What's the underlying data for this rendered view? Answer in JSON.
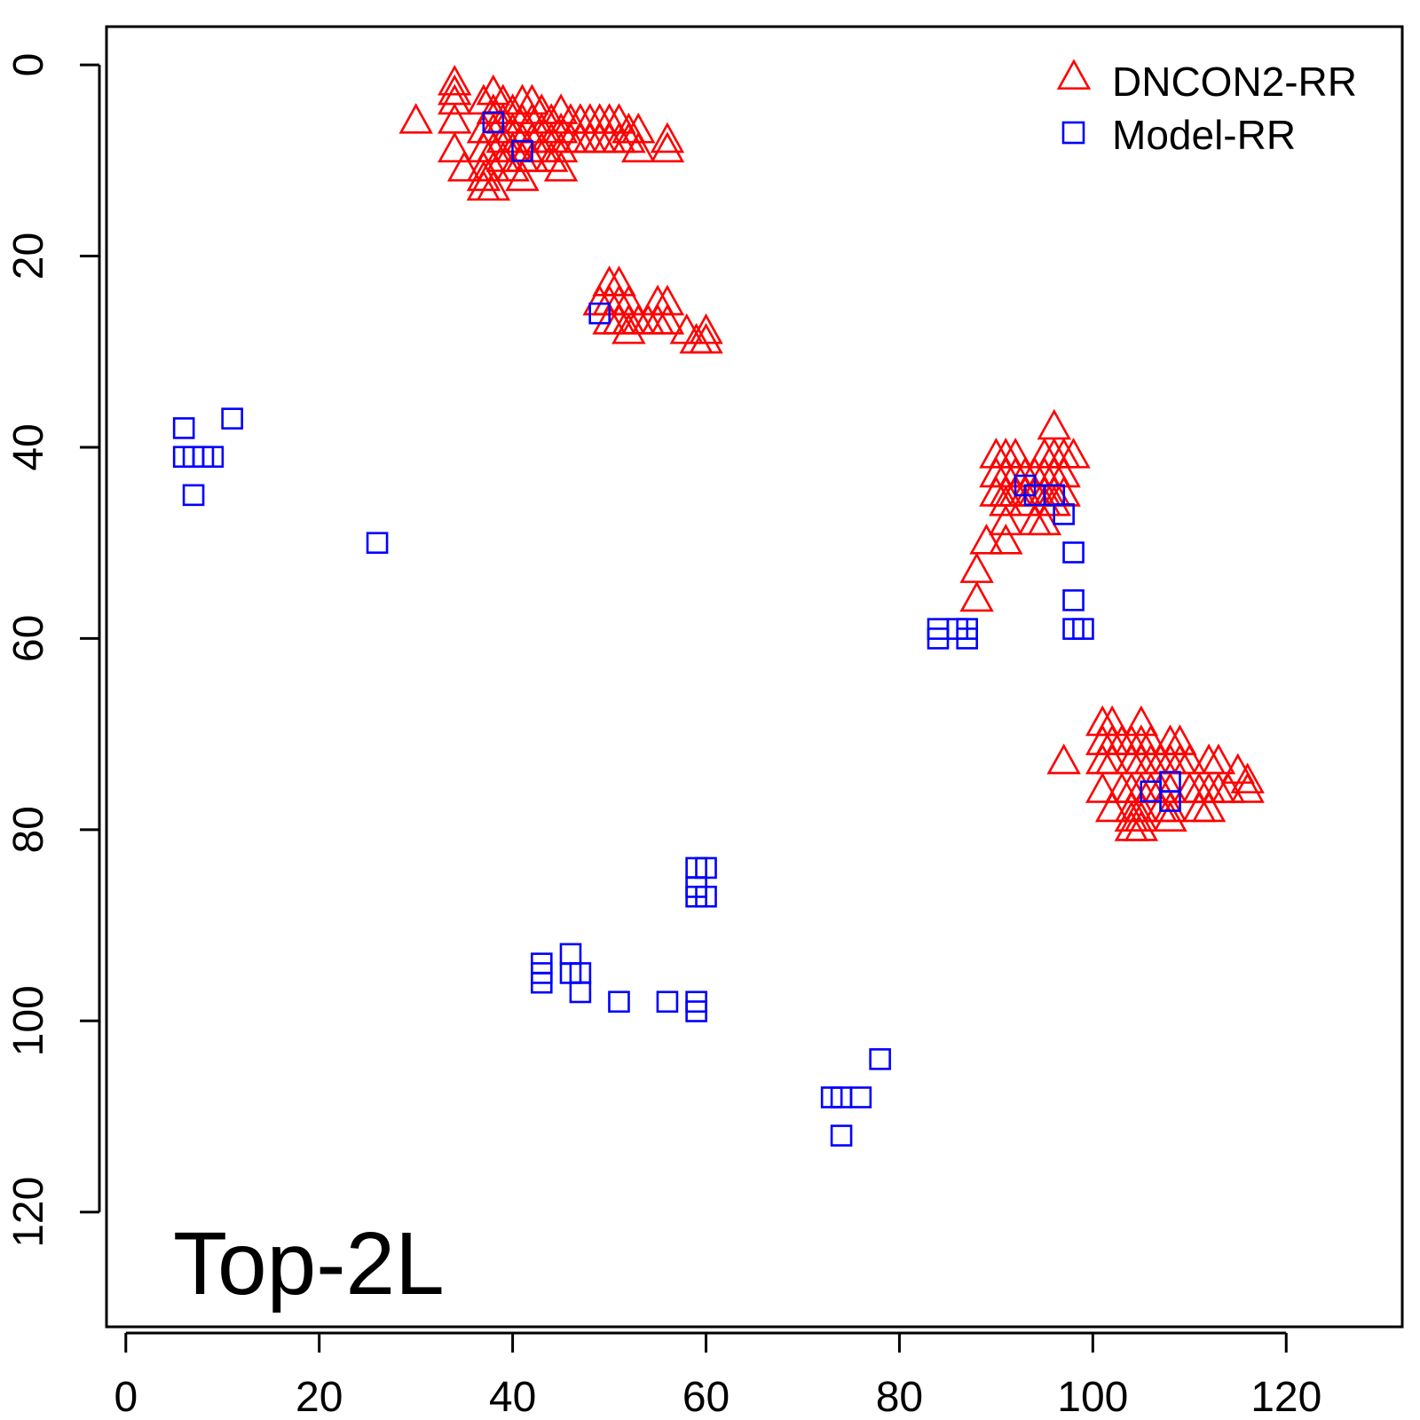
{
  "chart_data": {
    "type": "scatter",
    "title": "",
    "xlabel": "",
    "ylabel": "",
    "xlim": [
      -2,
      132
    ],
    "ylim": [
      -4,
      132
    ],
    "y_reversed": true,
    "grid": false,
    "legend_position": "top-right",
    "x_ticks": [
      0,
      20,
      40,
      60,
      80,
      100,
      120
    ],
    "y_ticks": [
      0,
      20,
      40,
      60,
      80,
      100,
      120
    ],
    "annotation": "Top-2L",
    "series": [
      {
        "name": "DNCON2-RR",
        "marker": "triangle",
        "color": "#ff0000",
        "points": [
          [
            30,
            6
          ],
          [
            34,
            2
          ],
          [
            34,
            3
          ],
          [
            34,
            4
          ],
          [
            34,
            6
          ],
          [
            34,
            9
          ],
          [
            35,
            11
          ],
          [
            37,
            4
          ],
          [
            37,
            7
          ],
          [
            37,
            9
          ],
          [
            37,
            11
          ],
          [
            37,
            12
          ],
          [
            37,
            13
          ],
          [
            38,
            3
          ],
          [
            38,
            5
          ],
          [
            38,
            7
          ],
          [
            38,
            9
          ],
          [
            38,
            11
          ],
          [
            38,
            13
          ],
          [
            39,
            4
          ],
          [
            39,
            6
          ],
          [
            39,
            8
          ],
          [
            39,
            10
          ],
          [
            40,
            5
          ],
          [
            40,
            7
          ],
          [
            40,
            9
          ],
          [
            40,
            11
          ],
          [
            41,
            4
          ],
          [
            41,
            6
          ],
          [
            41,
            8
          ],
          [
            41,
            10
          ],
          [
            41,
            12
          ],
          [
            42,
            4
          ],
          [
            42,
            6
          ],
          [
            42,
            8
          ],
          [
            42,
            10
          ],
          [
            43,
            5
          ],
          [
            43,
            7
          ],
          [
            43,
            9
          ],
          [
            44,
            6
          ],
          [
            44,
            8
          ],
          [
            44,
            10
          ],
          [
            45,
            5
          ],
          [
            45,
            7
          ],
          [
            45,
            9
          ],
          [
            45,
            11
          ],
          [
            46,
            6
          ],
          [
            46,
            8
          ],
          [
            47,
            6
          ],
          [
            47,
            8
          ],
          [
            48,
            6
          ],
          [
            48,
            8
          ],
          [
            49,
            6
          ],
          [
            49,
            8
          ],
          [
            50,
            6
          ],
          [
            50,
            8
          ],
          [
            51,
            6
          ],
          [
            51,
            8
          ],
          [
            52,
            7
          ],
          [
            52,
            8
          ],
          [
            53,
            7
          ],
          [
            53,
            9
          ],
          [
            56,
            8
          ],
          [
            56,
            9
          ],
          [
            49,
            25
          ],
          [
            50,
            23
          ],
          [
            50,
            25
          ],
          [
            50,
            27
          ],
          [
            51,
            23
          ],
          [
            51,
            25
          ],
          [
            51,
            27
          ],
          [
            52,
            25
          ],
          [
            52,
            27
          ],
          [
            52,
            28
          ],
          [
            53,
            27
          ],
          [
            54,
            27
          ],
          [
            55,
            25
          ],
          [
            55,
            27
          ],
          [
            56,
            25
          ],
          [
            56,
            27
          ],
          [
            58,
            28
          ],
          [
            59,
            29
          ],
          [
            60,
            28
          ],
          [
            60,
            29
          ],
          [
            96,
            38
          ],
          [
            90,
            41
          ],
          [
            91,
            41
          ],
          [
            92,
            41
          ],
          [
            95,
            41
          ],
          [
            96,
            41
          ],
          [
            97,
            41
          ],
          [
            98,
            41
          ],
          [
            90,
            43
          ],
          [
            91,
            43
          ],
          [
            92,
            43
          ],
          [
            93,
            43
          ],
          [
            94,
            43
          ],
          [
            95,
            43
          ],
          [
            96,
            43
          ],
          [
            97,
            43
          ],
          [
            90,
            45
          ],
          [
            91,
            45
          ],
          [
            92,
            45
          ],
          [
            93,
            45
          ],
          [
            94,
            45
          ],
          [
            95,
            45
          ],
          [
            96,
            45
          ],
          [
            97,
            45
          ],
          [
            91,
            46
          ],
          [
            93,
            46
          ],
          [
            95,
            46
          ],
          [
            96,
            46
          ],
          [
            91,
            48
          ],
          [
            94,
            48
          ],
          [
            95,
            48
          ],
          [
            89,
            50
          ],
          [
            91,
            50
          ],
          [
            88,
            53
          ],
          [
            88,
            56
          ],
          [
            97,
            73
          ],
          [
            101,
            69
          ],
          [
            102,
            69
          ],
          [
            105,
            69
          ],
          [
            101,
            71
          ],
          [
            102,
            71
          ],
          [
            103,
            71
          ],
          [
            104,
            71
          ],
          [
            105,
            71
          ],
          [
            106,
            71
          ],
          [
            108,
            71
          ],
          [
            109,
            71
          ],
          [
            101,
            73
          ],
          [
            102,
            73
          ],
          [
            104,
            73
          ],
          [
            105,
            73
          ],
          [
            106,
            73
          ],
          [
            107,
            73
          ],
          [
            108,
            73
          ],
          [
            109,
            73
          ],
          [
            110,
            73
          ],
          [
            112,
            73
          ],
          [
            113,
            73
          ],
          [
            115,
            74
          ],
          [
            116,
            75
          ],
          [
            101,
            76
          ],
          [
            103,
            76
          ],
          [
            104,
            76
          ],
          [
            105,
            76
          ],
          [
            106,
            76
          ],
          [
            107,
            76
          ],
          [
            108,
            76
          ],
          [
            110,
            76
          ],
          [
            111,
            76
          ],
          [
            112,
            76
          ],
          [
            113,
            76
          ],
          [
            114,
            76
          ],
          [
            116,
            76
          ],
          [
            102,
            78
          ],
          [
            104,
            78
          ],
          [
            105,
            78
          ],
          [
            107,
            78
          ],
          [
            108,
            78
          ],
          [
            111,
            78
          ],
          [
            112,
            78
          ],
          [
            104,
            79
          ],
          [
            105,
            79
          ],
          [
            108,
            79
          ],
          [
            104,
            80
          ],
          [
            105,
            80
          ]
        ]
      },
      {
        "name": "Model-RR",
        "marker": "square",
        "color": "#0000ff",
        "points": [
          [
            6,
            38
          ],
          [
            11,
            37
          ],
          [
            6,
            41
          ],
          [
            7,
            41
          ],
          [
            8,
            41
          ],
          [
            9,
            41
          ],
          [
            7,
            45
          ],
          [
            26,
            50
          ],
          [
            49,
            26
          ],
          [
            38,
            6
          ],
          [
            41,
            9
          ],
          [
            93,
            44
          ],
          [
            94,
            45
          ],
          [
            96,
            45
          ],
          [
            97,
            47
          ],
          [
            98,
            51
          ],
          [
            98,
            56
          ],
          [
            98,
            59
          ],
          [
            99,
            59
          ],
          [
            84,
            59
          ],
          [
            84,
            60
          ],
          [
            86,
            59
          ],
          [
            87,
            59
          ],
          [
            87,
            60
          ],
          [
            59,
            84
          ],
          [
            60,
            84
          ],
          [
            59,
            86
          ],
          [
            59,
            87
          ],
          [
            60,
            87
          ],
          [
            43,
            94
          ],
          [
            43,
            95
          ],
          [
            43,
            96
          ],
          [
            46,
            93
          ],
          [
            46,
            95
          ],
          [
            47,
            95
          ],
          [
            47,
            97
          ],
          [
            51,
            98
          ],
          [
            56,
            98
          ],
          [
            59,
            98
          ],
          [
            59,
            99
          ],
          [
            78,
            104
          ],
          [
            73,
            108
          ],
          [
            74,
            108
          ],
          [
            76,
            108
          ],
          [
            74,
            112
          ],
          [
            108,
            75
          ],
          [
            108,
            77
          ],
          [
            106,
            76
          ]
        ]
      }
    ]
  }
}
